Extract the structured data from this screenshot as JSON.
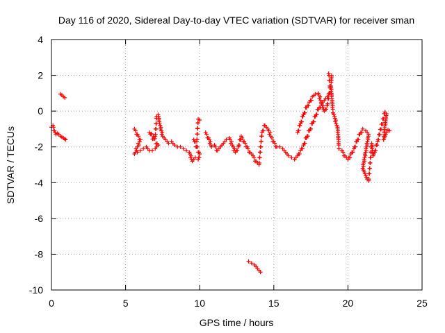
{
  "chart_data": {
    "type": "scatter",
    "title": "Day 116 of 2020, Sidereal Day-to-day VTEC variation (SDTVAR) for receiver sman",
    "xlabel": "GPS time / hours",
    "ylabel": "SDTVAR / TECUs",
    "xlim": [
      0,
      25
    ],
    "ylim": [
      -10,
      4
    ],
    "xticks": [
      0,
      5,
      10,
      15,
      20,
      25
    ],
    "yticks": [
      -10,
      -8,
      -6,
      -4,
      -2,
      0,
      2,
      4
    ],
    "grid": true,
    "marker": "+",
    "color": "#ff0000",
    "segments": [
      {
        "name": "seg-a",
        "points": [
          [
            0.0,
            -0.9
          ],
          [
            0.1,
            -0.8
          ],
          [
            0.2,
            -1.1
          ],
          [
            0.3,
            -1.3
          ],
          [
            0.4,
            -1.25
          ],
          [
            0.5,
            -1.3
          ],
          [
            0.6,
            -1.4
          ],
          [
            0.7,
            -1.45
          ],
          [
            0.8,
            -1.5
          ],
          [
            0.9,
            -1.55
          ],
          [
            0.95,
            -1.6
          ]
        ]
      },
      {
        "name": "seg-b",
        "points": [
          [
            0.6,
            0.95
          ],
          [
            0.7,
            0.9
          ],
          [
            0.8,
            0.8
          ],
          [
            0.9,
            0.75
          ]
        ]
      },
      {
        "name": "seg-c",
        "points": [
          [
            5.6,
            -1.0
          ],
          [
            5.8,
            -1.3
          ],
          [
            6.0,
            -1.6
          ],
          [
            5.6,
            -2.4
          ],
          [
            5.8,
            -2.3
          ],
          [
            6.0,
            -2.2
          ],
          [
            6.2,
            -2.1
          ],
          [
            6.4,
            -2.0
          ],
          [
            6.6,
            -2.2
          ],
          [
            6.8,
            -2.2
          ],
          [
            7.0,
            -2.1
          ],
          [
            7.2,
            -1.9
          ],
          [
            6.6,
            -1.2
          ],
          [
            7.0,
            -1.4
          ],
          [
            7.1,
            -0.3
          ],
          [
            7.2,
            -0.2
          ],
          [
            7.3,
            -0.7
          ],
          [
            7.5,
            -1.4
          ],
          [
            7.7,
            -1.6
          ],
          [
            7.9,
            -1.8
          ],
          [
            8.1,
            -1.7
          ],
          [
            8.3,
            -1.9
          ],
          [
            8.5,
            -2.0
          ],
          [
            8.7,
            -2.0
          ],
          [
            8.9,
            -2.1
          ],
          [
            9.1,
            -2.2
          ],
          [
            9.3,
            -2.3
          ],
          [
            9.5,
            -2.8
          ],
          [
            9.7,
            -2.6
          ],
          [
            9.9,
            -2.7
          ],
          [
            10.0,
            -2.4
          ],
          [
            9.6,
            -1.6
          ],
          [
            9.8,
            -1.7
          ],
          [
            9.9,
            -0.45
          ],
          [
            10.0,
            -0.5
          ]
        ]
      },
      {
        "name": "seg-d",
        "points": [
          [
            10.4,
            -1.2
          ],
          [
            10.6,
            -1.5
          ],
          [
            10.8,
            -2.0
          ],
          [
            11.0,
            -1.9
          ],
          [
            11.2,
            -2.2
          ],
          [
            11.4,
            -2.0
          ],
          [
            11.6,
            -1.8
          ],
          [
            11.8,
            -1.6
          ],
          [
            12.0,
            -1.5
          ],
          [
            12.2,
            -1.9
          ],
          [
            12.4,
            -2.3
          ],
          [
            12.6,
            -2.0
          ],
          [
            12.8,
            -1.4
          ],
          [
            13.0,
            -1.7
          ],
          [
            13.2,
            -2.0
          ],
          [
            13.4,
            -2.3
          ],
          [
            13.6,
            -2.5
          ],
          [
            13.8,
            -2.8
          ],
          [
            14.0,
            -3.0
          ],
          [
            14.2,
            -1.2
          ],
          [
            14.4,
            -0.8
          ],
          [
            14.6,
            -1.0
          ],
          [
            14.8,
            -1.4
          ],
          [
            15.0,
            -1.7
          ],
          [
            15.2,
            -2.0
          ],
          [
            15.4,
            -2.0
          ],
          [
            15.6,
            -2.1
          ],
          [
            15.8,
            -2.3
          ],
          [
            16.0,
            -2.5
          ],
          [
            16.2,
            -2.6
          ],
          [
            16.4,
            -2.7
          ],
          [
            16.6,
            -2.5
          ],
          [
            16.8,
            -2.2
          ],
          [
            17.0,
            -1.9
          ],
          [
            17.2,
            -1.5
          ],
          [
            17.4,
            -1.1
          ],
          [
            17.6,
            -0.7
          ],
          [
            17.8,
            -0.3
          ],
          [
            18.0,
            0.1
          ],
          [
            18.2,
            0.4
          ],
          [
            18.4,
            0.6
          ],
          [
            18.6,
            0.8
          ],
          [
            18.8,
            1.0
          ]
        ]
      },
      {
        "name": "seg-e",
        "points": [
          [
            16.6,
            -1.2
          ],
          [
            16.8,
            -0.7
          ],
          [
            17.0,
            -0.2
          ],
          [
            17.2,
            0.2
          ],
          [
            17.4,
            0.5
          ],
          [
            17.6,
            0.8
          ],
          [
            17.8,
            0.95
          ],
          [
            18.0,
            1.0
          ],
          [
            18.2,
            0.5
          ],
          [
            18.4,
            0.0
          ],
          [
            18.6,
            0.3
          ],
          [
            18.8,
            1.3
          ],
          [
            18.7,
            2.1
          ],
          [
            18.9,
            2.0
          ],
          [
            18.85,
            1.4
          ],
          [
            19.0,
            -0.1
          ],
          [
            19.1,
            -0.3
          ],
          [
            19.2,
            -0.7
          ],
          [
            19.3,
            -0.9
          ],
          [
            19.4,
            -2.1
          ],
          [
            19.6,
            -2.2
          ],
          [
            19.8,
            -2.5
          ],
          [
            20.0,
            -2.7
          ],
          [
            20.2,
            -2.4
          ],
          [
            20.4,
            -2.1
          ],
          [
            20.6,
            -1.7
          ],
          [
            20.8,
            -1.3
          ],
          [
            21.0,
            -1.0
          ],
          [
            21.2,
            -1.1
          ],
          [
            21.4,
            -1.3
          ],
          [
            21.0,
            -3.2
          ],
          [
            21.1,
            -3.4
          ],
          [
            21.2,
            -3.6
          ],
          [
            21.3,
            -3.8
          ],
          [
            21.4,
            -3.9
          ],
          [
            21.6,
            -1.8
          ],
          [
            21.7,
            -2.5
          ],
          [
            21.8,
            -2.3
          ],
          [
            22.0,
            -1.7
          ],
          [
            22.5,
            -0.05
          ],
          [
            22.6,
            -0.15
          ],
          [
            22.4,
            -1.6
          ],
          [
            22.5,
            -1.4
          ],
          [
            22.6,
            -1.2
          ],
          [
            22.7,
            -1.05
          ],
          [
            22.8,
            -1.1
          ]
        ]
      },
      {
        "name": "seg-f",
        "points": [
          [
            13.3,
            -8.4
          ],
          [
            13.5,
            -8.5
          ],
          [
            13.7,
            -8.6
          ],
          [
            13.9,
            -8.8
          ],
          [
            14.1,
            -9.0
          ]
        ]
      }
    ]
  }
}
